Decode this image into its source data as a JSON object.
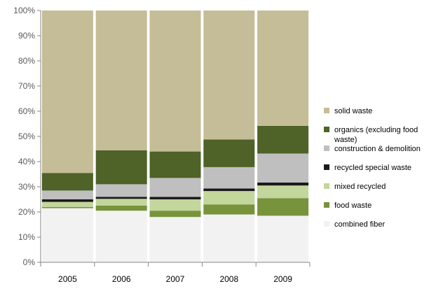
{
  "chart_data": {
    "type": "bar",
    "stacked": true,
    "percent": true,
    "categories": [
      "2005",
      "2006",
      "2007",
      "2008",
      "2009"
    ],
    "ylim": [
      0,
      100
    ],
    "ytick_labels": [
      "0%",
      "10%",
      "20%",
      "30%",
      "40%",
      "50%",
      "60%",
      "70%",
      "80%",
      "90%",
      "100%"
    ],
    "legend_position": "right",
    "grid": false,
    "series": [
      {
        "name": "combined fiber",
        "color": "#f2f2f2",
        "values": [
          21.5,
          20.5,
          18.0,
          19.0,
          18.5
        ]
      },
      {
        "name": "food waste",
        "color": "#77933c",
        "values": [
          0.5,
          2.0,
          2.5,
          4.0,
          7.0
        ]
      },
      {
        "name": "mixed recycled",
        "color": "#c3d69b",
        "values": [
          2.0,
          2.7,
          4.5,
          5.3,
          5.0
        ]
      },
      {
        "name": "recycled special waste",
        "color": "#1a1a1a",
        "values": [
          1.0,
          0.8,
          1.0,
          1.0,
          1.2
        ]
      },
      {
        "name": "construction & demolition",
        "color": "#bfbfbf",
        "values": [
          3.5,
          5.0,
          7.5,
          8.5,
          11.5
        ]
      },
      {
        "name": "organics (excluding food waste)",
        "color": "#4f6228",
        "values": [
          7.0,
          13.5,
          10.5,
          11.0,
          11.0
        ]
      },
      {
        "name": "solid waste",
        "color": "#c4bd97",
        "values": [
          64.5,
          55.5,
          56.0,
          51.2,
          45.8
        ]
      }
    ]
  }
}
